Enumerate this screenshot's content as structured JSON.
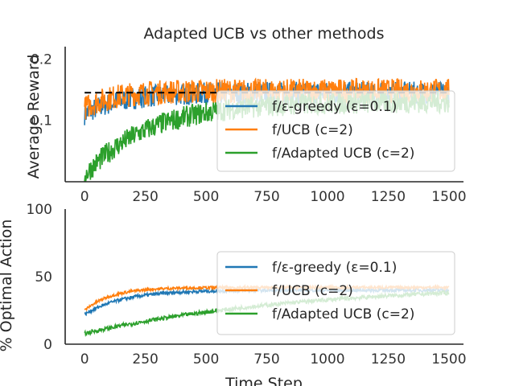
{
  "chart_data": [
    {
      "type": "line",
      "title": "Adapted UCB vs other methods",
      "xlabel": "",
      "ylabel": "Average Reward",
      "xlim": [
        -80,
        1560
      ],
      "ylim": [
        0,
        0.22
      ],
      "xticks": [
        0,
        250,
        500,
        750,
        1000,
        1250,
        1500
      ],
      "yticks": [
        0.1,
        0.2
      ],
      "ytick_labels": [
        "0.1",
        "0.2"
      ],
      "grid": false,
      "legend": "lower-right",
      "reference_line": {
        "y": 0.145,
        "x_range": [
          0,
          1500
        ],
        "style": "dashed",
        "color": "#000000"
      },
      "series": [
        {
          "name": "f/ε-greedy (ε=0.1)",
          "color": "#1f77b4",
          "start": 0.11,
          "plateau": 0.145,
          "tau": 150,
          "noise": 0.018
        },
        {
          "name": "f/UCB (c=2)",
          "color": "#ff7f0e",
          "start": 0.12,
          "plateau": 0.148,
          "tau": 120,
          "noise": 0.02
        },
        {
          "name": "f/Adapted UCB (c=2)",
          "color": "#2ca02c",
          "start": 0.01,
          "plateau": 0.13,
          "tau": 260,
          "noise": 0.018
        }
      ]
    },
    {
      "type": "line",
      "title": "",
      "xlabel": "Time Step",
      "ylabel": "% Optimal Action",
      "xlim": [
        -80,
        1560
      ],
      "ylim": [
        0,
        100
      ],
      "xticks": [
        0,
        250,
        500,
        750,
        1000,
        1250,
        1500
      ],
      "yticks": [
        0,
        50,
        100
      ],
      "ytick_labels": [
        "0",
        "50",
        "100"
      ],
      "grid": false,
      "legend": "right",
      "series": [
        {
          "name": "f/ε-greedy (ε=0.1)",
          "color": "#1f77b4",
          "start": 22,
          "plateau": 40,
          "tau": 160,
          "noise": 1.2
        },
        {
          "name": "f/UCB (c=2)",
          "color": "#ff7f0e",
          "start": 25,
          "plateau": 42,
          "tau": 110,
          "noise": 1.0
        },
        {
          "name": "f/Adapted UCB (c=2)",
          "color": "#2ca02c",
          "start": 8,
          "plateau": 45,
          "tau": 900,
          "noise": 1.5
        }
      ]
    }
  ]
}
